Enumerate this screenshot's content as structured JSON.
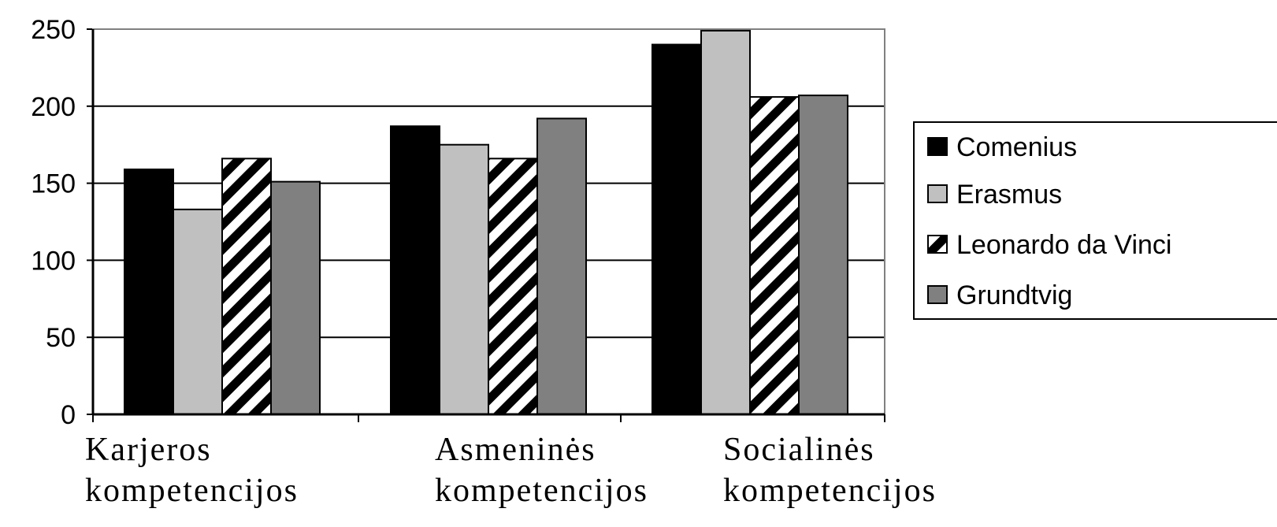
{
  "chart_data": {
    "type": "bar",
    "categories": [
      [
        "Karjeros",
        "kompetencijos"
      ],
      [
        "Asmeninės",
        "kompetencijos"
      ],
      [
        "Socialinės",
        "kompetencijos"
      ]
    ],
    "series": [
      {
        "name": "Comenius",
        "values": [
          159,
          187,
          240
        ],
        "color": "#000000",
        "pattern": "solid"
      },
      {
        "name": "Erasmus",
        "values": [
          133,
          175,
          249
        ],
        "color": "#c0c0c0",
        "pattern": "solid"
      },
      {
        "name": "Leonardo da Vinci",
        "values": [
          166,
          166,
          206
        ],
        "color": "#ffffff",
        "pattern": "diagonal-stripes"
      },
      {
        "name": "Grundtvig",
        "values": [
          151,
          192,
          207
        ],
        "color": "#808080",
        "pattern": "solid"
      }
    ],
    "yticks": [
      "0",
      "50",
      "100",
      "150",
      "200",
      "250"
    ],
    "ylim": [
      0,
      250
    ],
    "grid": true,
    "legend_position": "right",
    "title": "",
    "xlabel": "",
    "ylabel": ""
  }
}
